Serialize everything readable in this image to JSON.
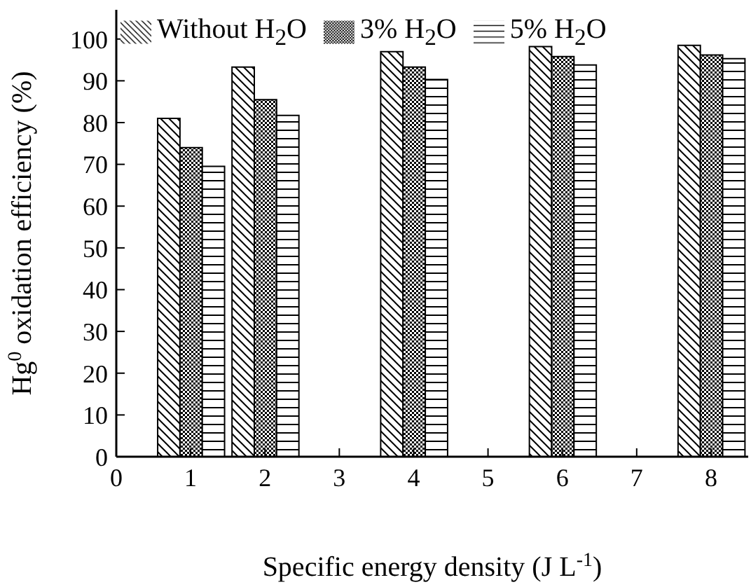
{
  "chart_data": {
    "type": "bar",
    "xlabel": "Specific energy density (J L$^{-1}$)",
    "ylabel": "Hg$^{0}$ oxidation efficiency (%)",
    "x": [
      1,
      2,
      4,
      6,
      8
    ],
    "series": [
      {
        "name": "Without H$_{2}$O",
        "color": "#000000",
        "values": [
          81,
          93.3,
          97,
          98.2,
          98.5
        ]
      },
      {
        "name": "3% H$_{2}$O",
        "color": "#000000",
        "values": [
          74,
          85.5,
          93.3,
          95.8,
          96.2
        ]
      },
      {
        "name": "5% H$_{2}$O",
        "color": "#000000",
        "values": [
          69.5,
          81.7,
          90.3,
          93.8,
          95.3
        ]
      }
    ],
    "xlim": [
      0,
      8.5
    ],
    "xticks": [
      0,
      1,
      2,
      3,
      4,
      5,
      6,
      7,
      8
    ],
    "ylim": [
      0,
      107
    ],
    "yticks": [
      0,
      10,
      20,
      30,
      40,
      50,
      60,
      70,
      80,
      90,
      100
    ],
    "grid": false,
    "legend": "top"
  }
}
